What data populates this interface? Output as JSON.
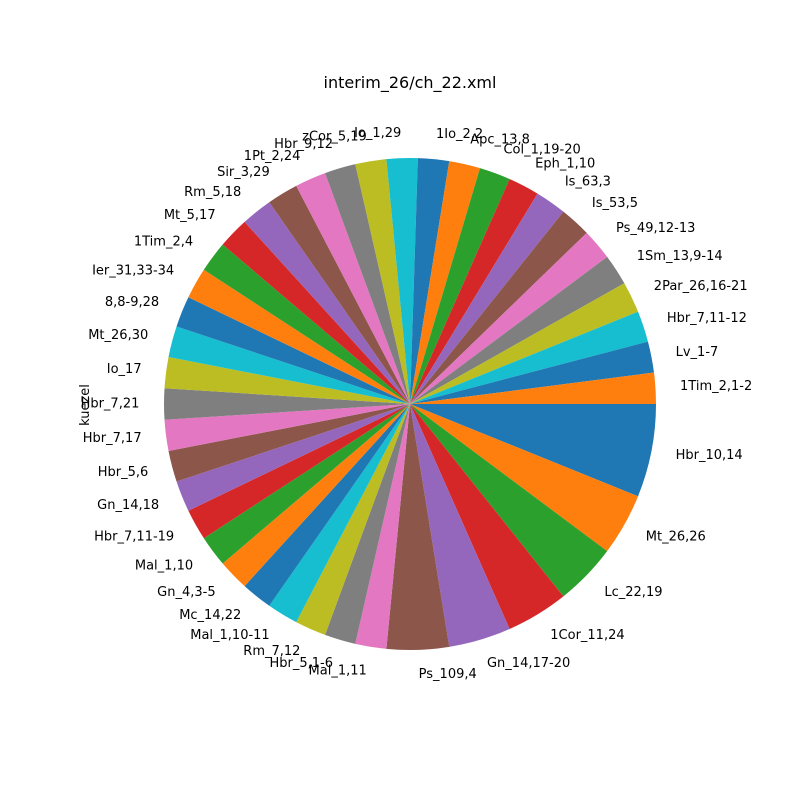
{
  "chart_data": {
    "type": "pie",
    "title": "interim_26/ch_22.xml",
    "ylabel": "kuezel",
    "start_angle_deg": 0,
    "direction": "clockwise",
    "labels": [
      "Hbr_10,14",
      "Mt_26,26",
      "Lc_22,19",
      "1Cor_11,24",
      "Gn_14,17-20",
      "Ps_109,4",
      "Mal_1,11",
      "Hbr_5,1-6",
      "Rm_7,12",
      "Mal_1,10-11",
      "Mc_14,22",
      "Gn_4,3-5",
      "Mal_1,10",
      "Hbr_7,11-19",
      "Gn_14,18",
      "Hbr_5,6",
      "Hbr_7,17",
      "Hbr_7,21",
      "Io_17",
      "Mt_26,30",
      "8,8-9,28",
      "Ier_31,33-34",
      "1Tim_2,4",
      "Mt_5,17",
      "Rm_5,18",
      "Sir_3,29",
      "1Pt_2,24",
      "Hbr_9,12",
      "zCor_5,19",
      "Io_1,29",
      "1Io_2,2",
      "Apc_13,8",
      "Col_1,19-20",
      "Eph_1,10",
      "Is_63,3",
      "Is_53,5",
      "Ps_49,12-13",
      "1Sm_13,9-14",
      "2Par_26,16-21",
      "Hbr_7,11-12",
      "Lv_1-7",
      "1Tim_2,1-2"
    ],
    "values": [
      3,
      2,
      2,
      2,
      2,
      2,
      1,
      1,
      1,
      1,
      1,
      1,
      1,
      1,
      1,
      1,
      1,
      1,
      1,
      1,
      1,
      1,
      1,
      1,
      1,
      1,
      1,
      1,
      1,
      1,
      1,
      1,
      1,
      1,
      1,
      1,
      1,
      1,
      1,
      1,
      1,
      1
    ],
    "colors": [
      "#1f77b4",
      "#ff7f0e",
      "#2ca02c",
      "#d62728",
      "#9467bd",
      "#8c564b",
      "#e377c2",
      "#7f7f7f",
      "#bcbd22",
      "#17becf"
    ]
  }
}
